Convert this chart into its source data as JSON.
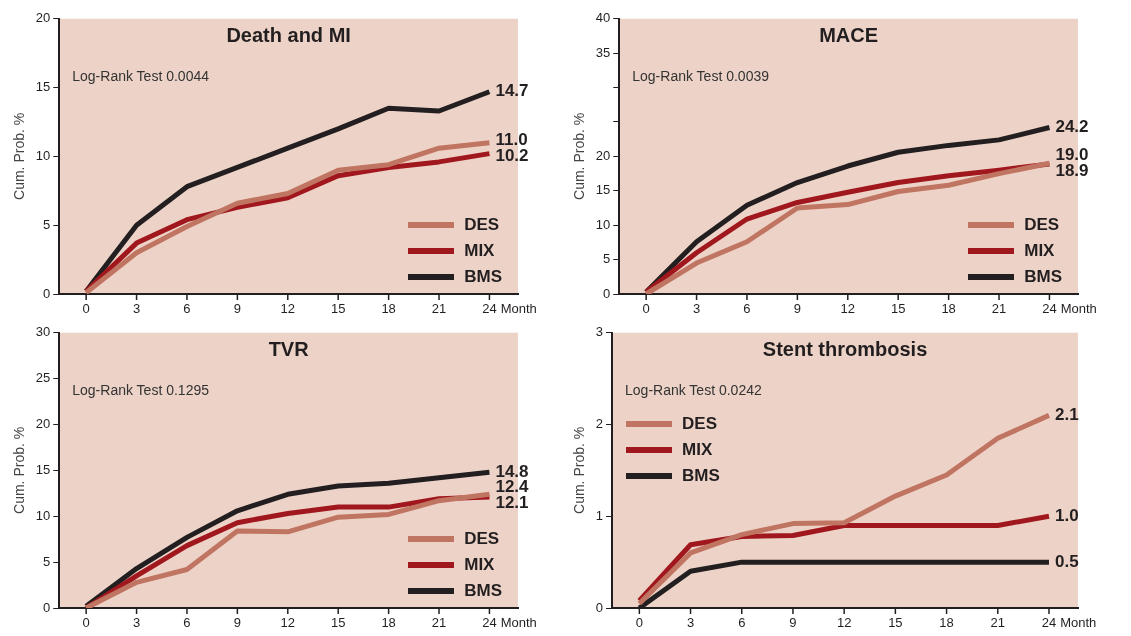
{
  "chart_data": [
    {
      "type": "line",
      "title": "Death and MI",
      "xlabel": "Month",
      "ylabel": "Cum. Prob. %",
      "annotations": [
        "Log-Rank Test 0.0044"
      ],
      "x": [
        0,
        3,
        6,
        9,
        12,
        15,
        18,
        21,
        24
      ],
      "xlim": [
        -1.6,
        25.7
      ],
      "xticks": [
        0,
        3,
        6,
        9,
        12,
        15,
        18,
        21,
        24
      ],
      "ylim": [
        0,
        20
      ],
      "yticks": [
        0,
        5,
        10,
        15,
        20
      ],
      "legend": "bottom right",
      "marker": "none",
      "series": [
        {
          "name": "DES",
          "color": "#c07562",
          "values": [
            0.1,
            3.0,
            4.9,
            6.6,
            7.3,
            9.0,
            9.4,
            10.6,
            11.0
          ],
          "value_labels": [
            null,
            null,
            null,
            null,
            null,
            null,
            null,
            null,
            "11.0"
          ]
        },
        {
          "name": "MIX",
          "color": "#a0181e",
          "values": [
            0.2,
            3.7,
            5.4,
            6.3,
            7.0,
            8.6,
            9.2,
            9.6,
            10.2
          ],
          "value_labels": [
            null,
            null,
            null,
            null,
            null,
            null,
            null,
            null,
            "10.2"
          ]
        },
        {
          "name": "BMS",
          "color": "#231f20",
          "values": [
            0.2,
            5.0,
            7.8,
            9.2,
            10.6,
            12.0,
            13.5,
            13.3,
            14.7
          ],
          "value_labels": [
            null,
            null,
            null,
            null,
            null,
            null,
            null,
            null,
            "14.7"
          ]
        }
      ]
    },
    {
      "type": "line",
      "title": "MACE",
      "xlabel": "Month",
      "ylabel": "Cum. Prob. %",
      "annotations": [
        "Log-Rank Test 0.0039"
      ],
      "x": [
        0,
        3,
        6,
        9,
        12,
        15,
        18,
        21,
        24
      ],
      "xlim": [
        -1.6,
        25.7
      ],
      "xticks": [
        0,
        3,
        6,
        9,
        12,
        15,
        18,
        21,
        24
      ],
      "ylim": [
        0,
        40
      ],
      "yticks": [
        0,
        5,
        10,
        15,
        20,
        {
          "value": 25,
          "label": null
        },
        {
          "value": 30,
          "label": null
        },
        35,
        40
      ],
      "legend": "bottom right",
      "marker": "none",
      "series": [
        {
          "name": "DES",
          "color": "#c07562",
          "values": [
            0,
            4.5,
            7.6,
            12.5,
            13.0,
            14.9,
            15.8,
            17.5,
            19.0
          ],
          "value_labels": [
            null,
            null,
            null,
            null,
            null,
            null,
            null,
            null,
            "19.0"
          ]
        },
        {
          "name": "MIX",
          "color": "#a0181e",
          "values": [
            0.3,
            6.0,
            10.9,
            13.3,
            14.8,
            16.2,
            17.2,
            18.0,
            18.9
          ],
          "value_labels": [
            null,
            null,
            null,
            null,
            null,
            null,
            null,
            null,
            "18.9"
          ]
        },
        {
          "name": "BMS",
          "color": "#231f20",
          "values": [
            0.3,
            7.6,
            12.9,
            16.2,
            18.6,
            20.6,
            21.6,
            22.4,
            24.2
          ],
          "value_labels": [
            null,
            null,
            null,
            null,
            null,
            null,
            null,
            null,
            "24.2"
          ]
        }
      ]
    },
    {
      "type": "line",
      "title": "TVR",
      "xlabel": "Month",
      "ylabel": "Cum. Prob. %",
      "annotations": [
        "Log-Rank Test 0.1295"
      ],
      "x": [
        0,
        3,
        6,
        9,
        12,
        15,
        18,
        21,
        24
      ],
      "xlim": [
        -1.6,
        25.7
      ],
      "xticks": [
        0,
        3,
        6,
        9,
        12,
        15,
        18,
        21,
        24
      ],
      "ylim": [
        0,
        30
      ],
      "yticks": [
        0,
        5,
        10,
        15,
        20,
        25,
        30
      ],
      "legend": "bottom right",
      "marker": "none",
      "series": [
        {
          "name": "DES",
          "color": "#c07562",
          "values": [
            0,
            2.8,
            4.2,
            8.4,
            8.3,
            9.9,
            10.2,
            11.7,
            12.4
          ],
          "value_labels": [
            null,
            null,
            null,
            null,
            null,
            null,
            null,
            null,
            "12.4"
          ]
        },
        {
          "name": "MIX",
          "color": "#a0181e",
          "values": [
            0,
            3.5,
            6.8,
            9.3,
            10.3,
            11.0,
            11.0,
            11.9,
            12.1
          ],
          "value_labels": [
            null,
            null,
            null,
            null,
            null,
            null,
            null,
            null,
            "12.1"
          ]
        },
        {
          "name": "BMS",
          "color": "#231f20",
          "values": [
            0.2,
            4.3,
            7.7,
            10.6,
            12.4,
            13.3,
            13.6,
            14.2,
            14.8
          ],
          "value_labels": [
            null,
            null,
            null,
            null,
            null,
            null,
            null,
            null,
            "14.8"
          ]
        }
      ]
    },
    {
      "type": "line",
      "title": "Stent thrombosis",
      "xlabel": "Month",
      "ylabel": "Cum. Prob. %",
      "annotations": [
        "Log-Rank Test 0.0242"
      ],
      "x": [
        0,
        3,
        6,
        9,
        12,
        15,
        18,
        21,
        24
      ],
      "xlim": [
        -1.6,
        25.7
      ],
      "xticks": [
        0,
        3,
        6,
        9,
        12,
        15,
        18,
        21,
        24
      ],
      "ylim": [
        0,
        3
      ],
      "yticks": [
        0,
        1,
        2,
        3
      ],
      "legend": "top left",
      "marker": "none",
      "series": [
        {
          "name": "DES",
          "color": "#c07562",
          "values": [
            0.05,
            0.6,
            0.8,
            0.92,
            0.93,
            1.22,
            1.45,
            1.85,
            2.1
          ],
          "value_labels": [
            null,
            null,
            null,
            null,
            null,
            null,
            null,
            null,
            "2.1"
          ]
        },
        {
          "name": "MIX",
          "color": "#a0181e",
          "values": [
            0.08,
            0.69,
            0.78,
            0.79,
            0.9,
            0.9,
            0.9,
            0.9,
            1.0
          ],
          "value_labels": [
            null,
            null,
            null,
            null,
            null,
            null,
            null,
            null,
            "1.0"
          ]
        },
        {
          "name": "BMS",
          "color": "#231f20",
          "values": [
            0,
            0.4,
            0.5,
            0.5,
            0.5,
            0.5,
            0.5,
            0.5,
            0.5
          ],
          "value_labels": [
            null,
            null,
            null,
            null,
            null,
            null,
            null,
            null,
            "0.5"
          ]
        }
      ]
    }
  ]
}
